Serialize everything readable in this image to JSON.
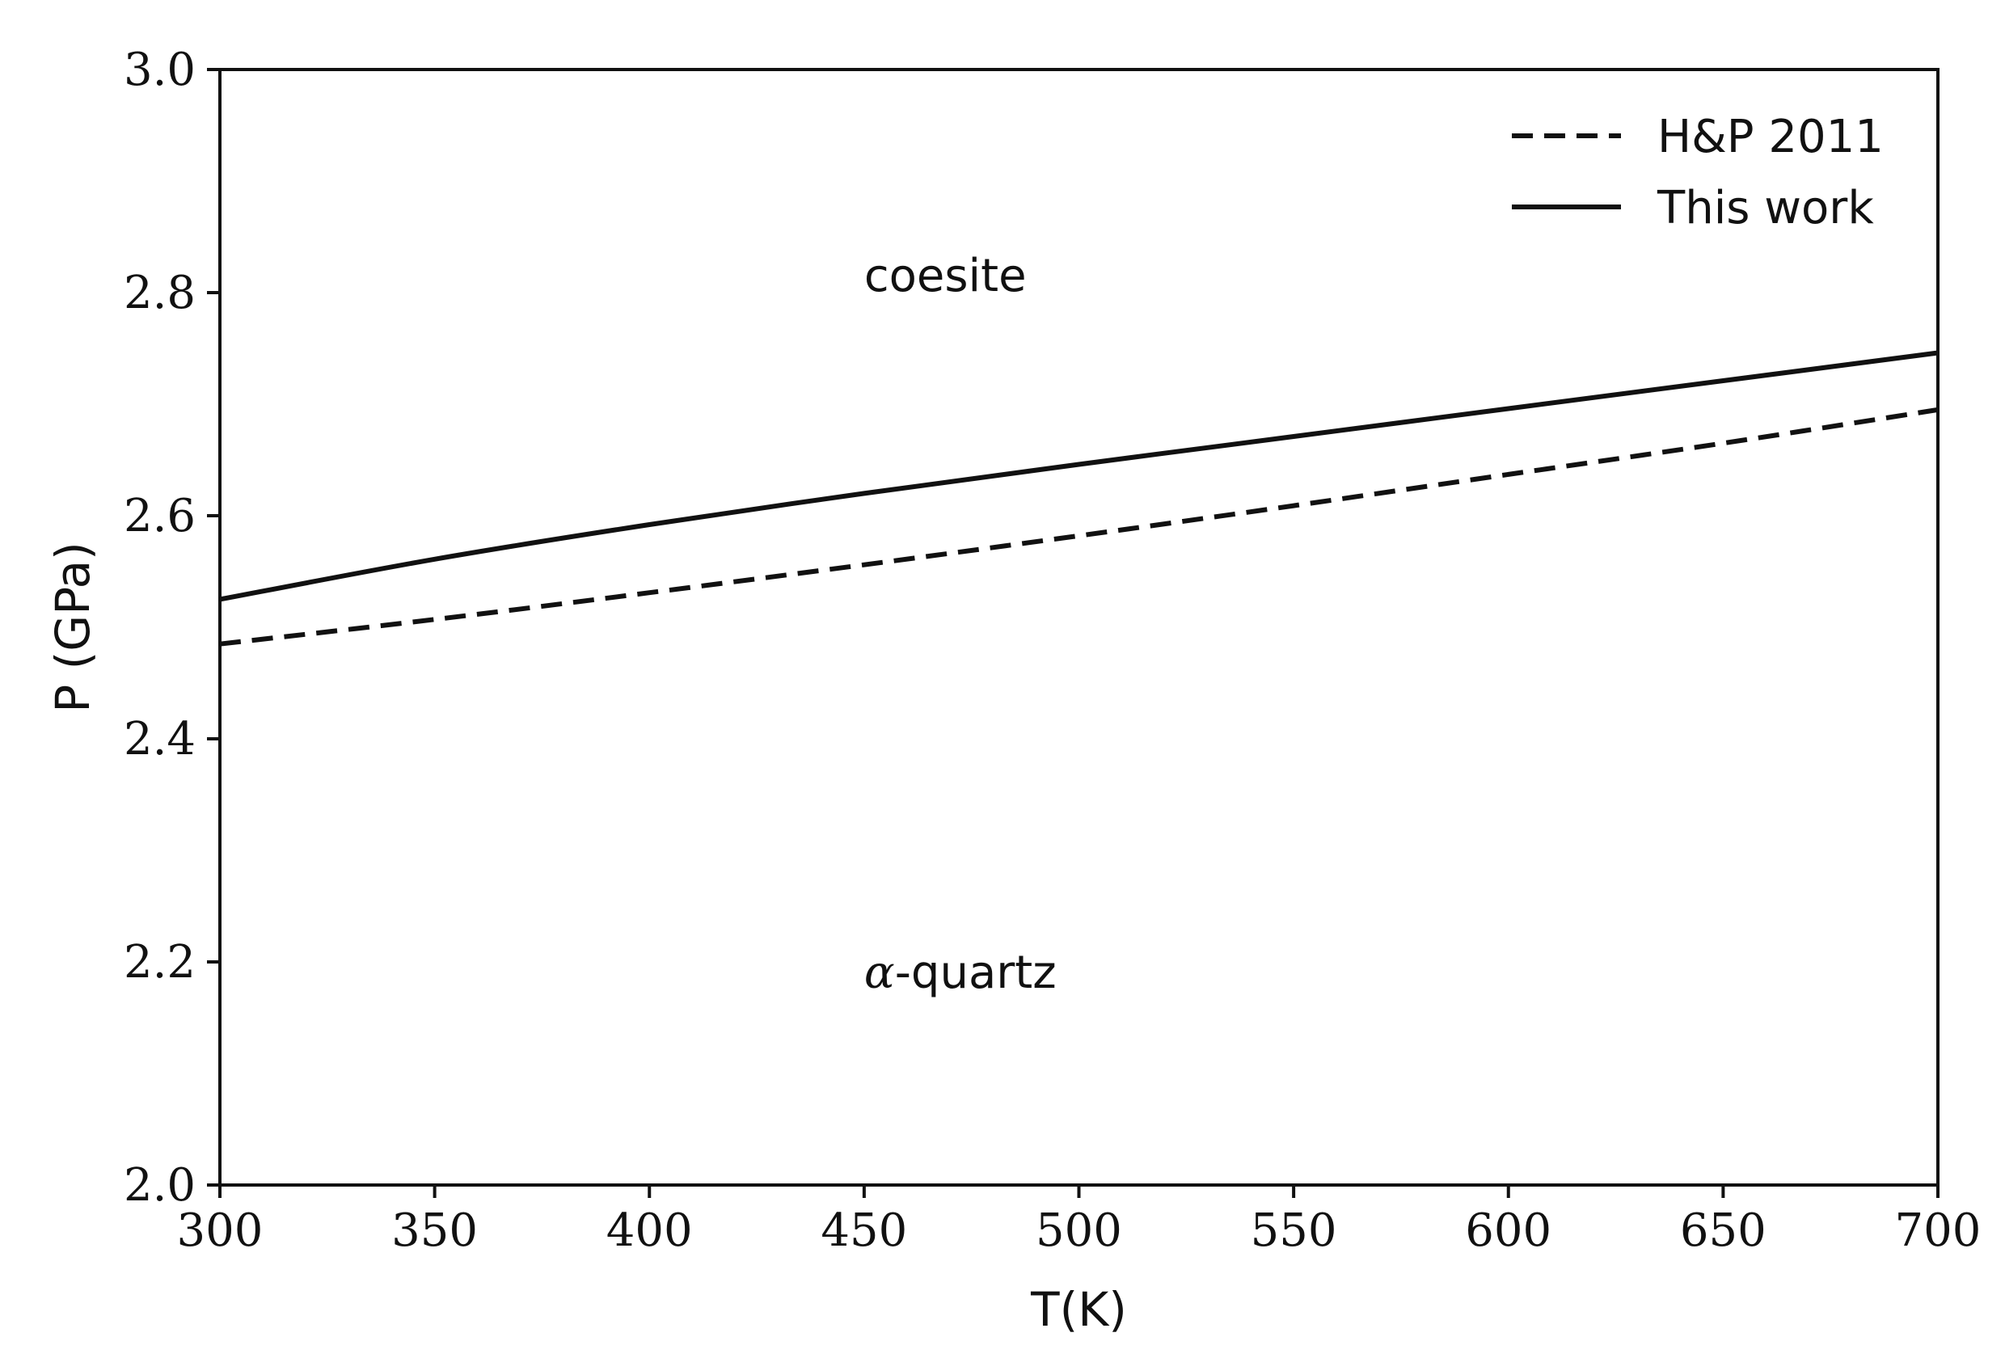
{
  "chart_data": {
    "type": "line",
    "xlabel": "T(K)",
    "ylabel": "P (GPa)",
    "xlim": [
      300,
      700
    ],
    "ylim": [
      2.0,
      3.0
    ],
    "x_ticks": [
      300,
      350,
      400,
      450,
      500,
      550,
      600,
      650,
      700
    ],
    "y_ticks": [
      "2.0",
      "2.2",
      "2.4",
      "2.6",
      "2.8",
      "3.0"
    ],
    "grid": false,
    "legend_position": "top-right",
    "series": [
      {
        "name": "H&P 2011",
        "style": "dashed",
        "color": "#111111",
        "x": [
          300,
          350,
          400,
          450,
          500,
          550,
          600,
          650,
          700
        ],
        "y": [
          2.485,
          2.507,
          2.531,
          2.556,
          2.582,
          2.609,
          2.637,
          2.665,
          2.695
        ]
      },
      {
        "name": "This work",
        "style": "solid",
        "color": "#111111",
        "x": [
          300,
          350,
          400,
          450,
          500,
          550,
          600,
          650,
          700
        ],
        "y": [
          2.525,
          2.561,
          2.592,
          2.62,
          2.646,
          2.671,
          2.696,
          2.721,
          2.746
        ]
      }
    ],
    "annotations": [
      {
        "text": "coesite",
        "x": 450,
        "y": 2.8
      },
      {
        "greek": "α",
        "text": "-quartz",
        "x": 450,
        "y": 2.2
      }
    ]
  }
}
